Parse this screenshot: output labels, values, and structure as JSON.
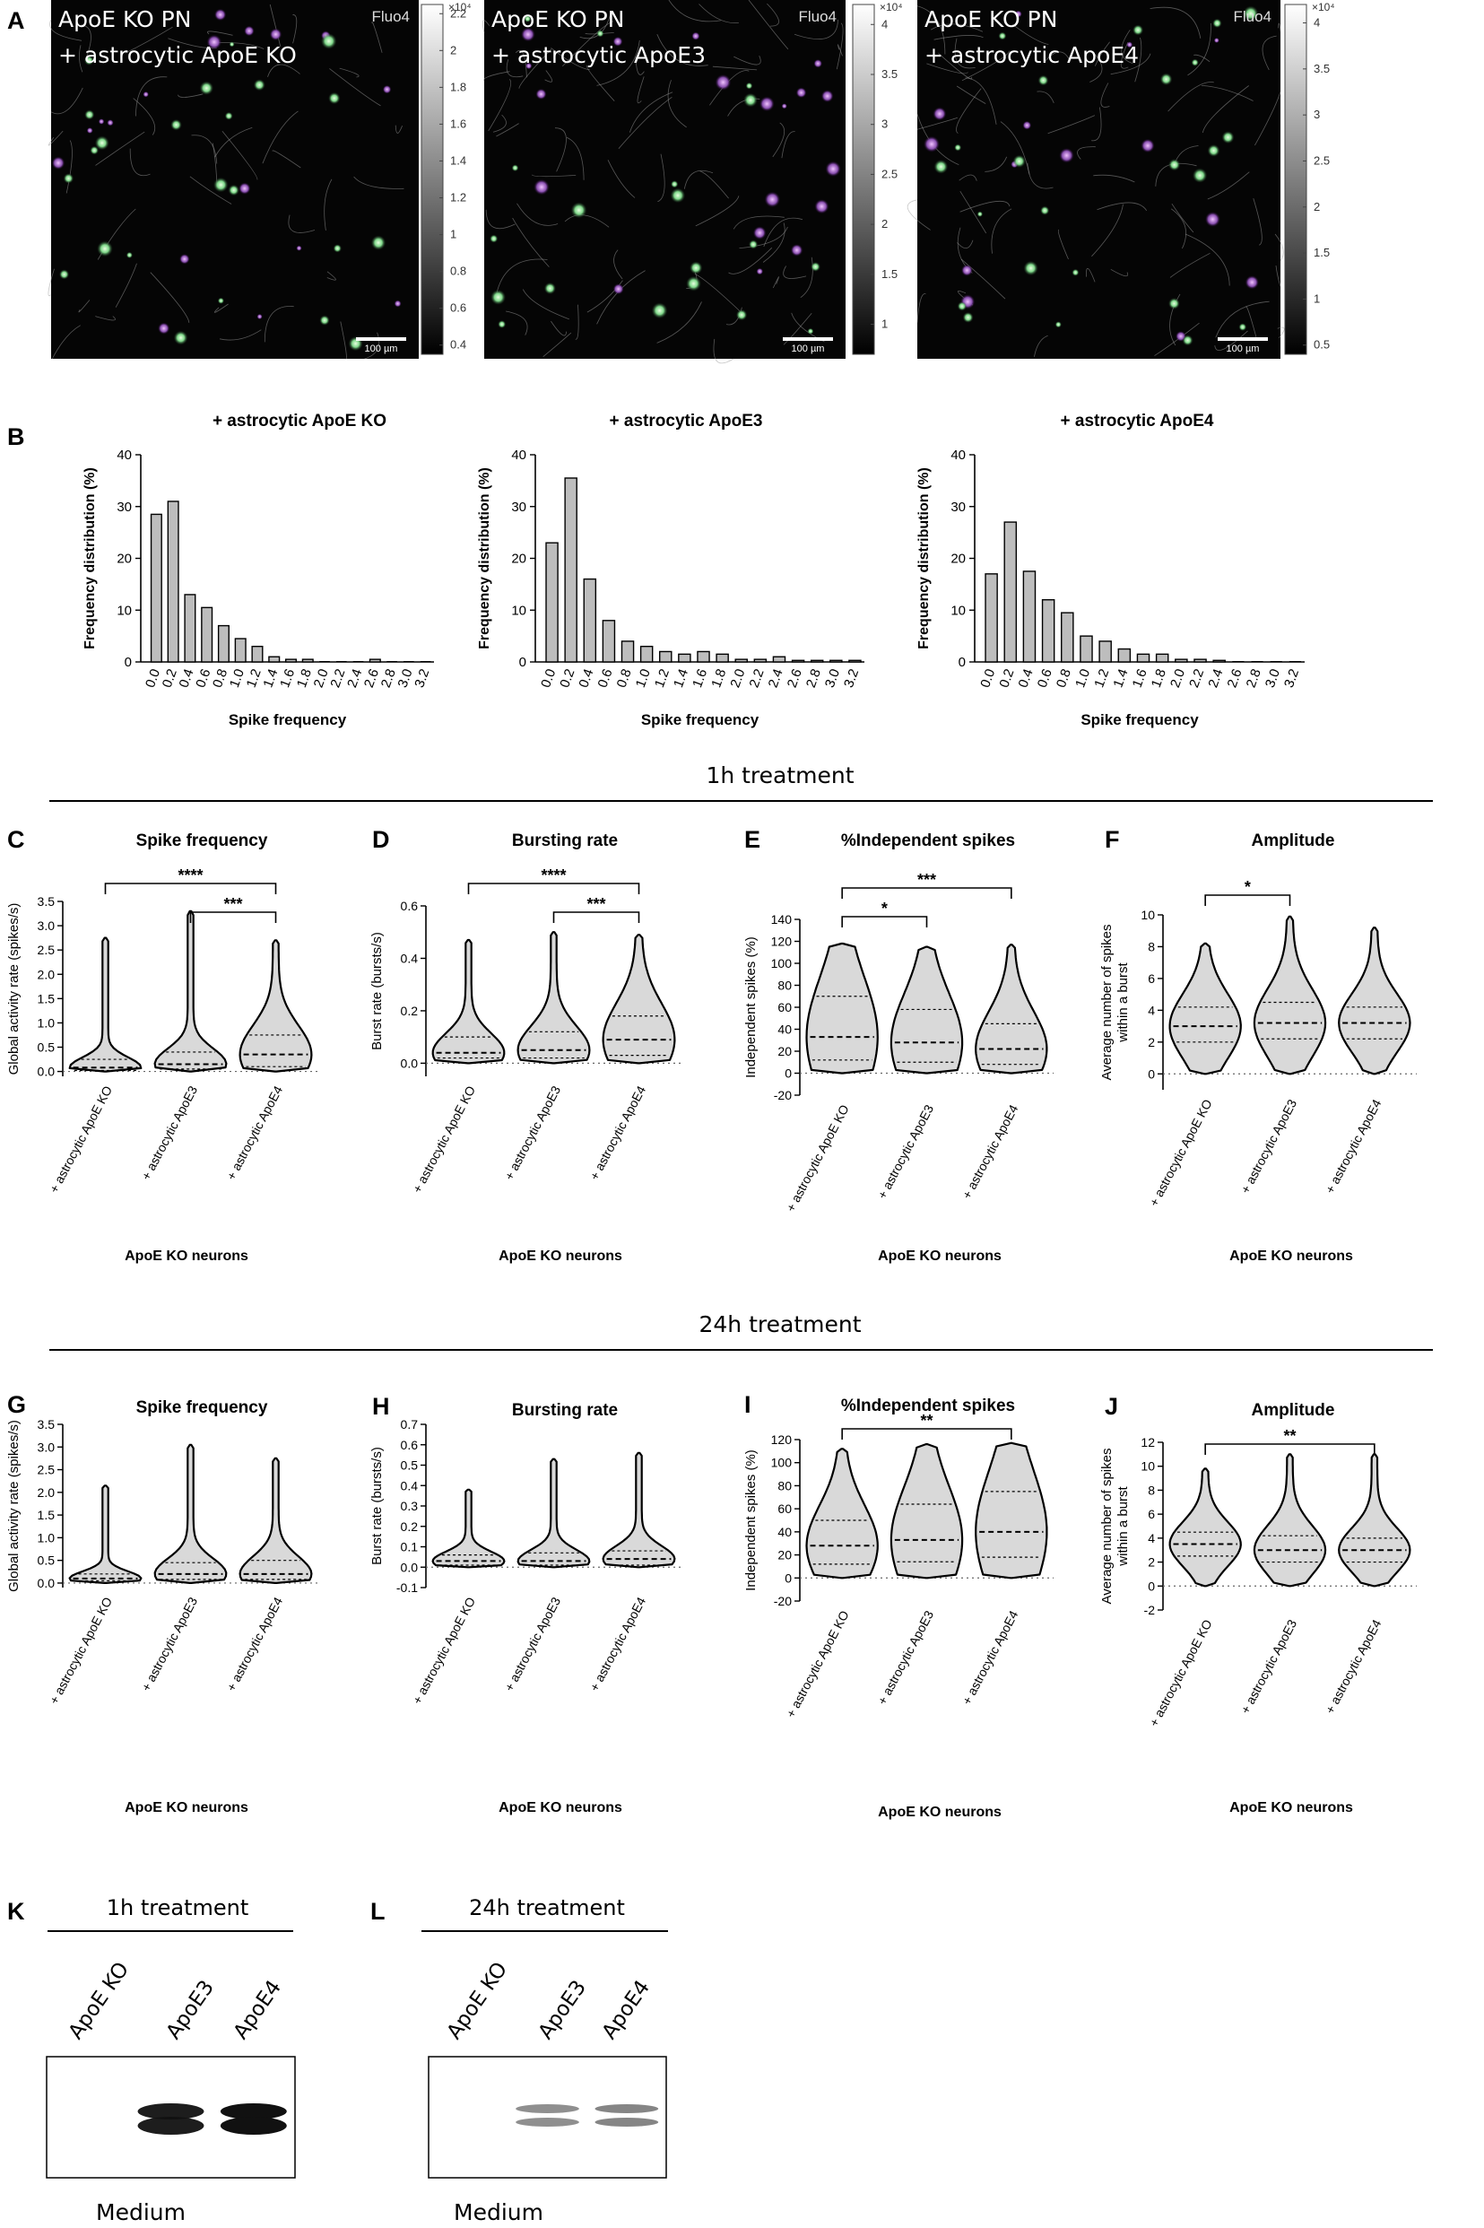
{
  "panel_letters": [
    "A",
    "B",
    "C",
    "D",
    "E",
    "F",
    "G",
    "H",
    "I",
    "J",
    "K",
    "L"
  ],
  "sections": {
    "h1": "1h treatment",
    "h24": "24h treatment"
  },
  "micrographs": [
    {
      "line1": "ApoE KO PN",
      "line2": "+ astrocytic ApoE KO",
      "channel": "Fluo4",
      "scale": "100 µm",
      "exp": "×10⁴",
      "cbar_ticks": [
        "2.2",
        "2",
        "1.8",
        "1.6",
        "1.4",
        "1.2",
        "1",
        "0.8",
        "0.6",
        "0.4"
      ],
      "cbar_range": [
        0.35,
        2.25
      ]
    },
    {
      "line1": "ApoE KO PN",
      "line2": "+ astrocytic ApoE3",
      "channel": "Fluo4",
      "scale": "100 µm",
      "exp": "×10⁴",
      "cbar_ticks": [
        "4",
        "3.5",
        "3",
        "2.5",
        "2",
        "1.5",
        "1"
      ],
      "cbar_range": [
        0.7,
        4.2
      ]
    },
    {
      "line1": "ApoE KO PN",
      "line2": "+ astrocytic ApoE4",
      "channel": "Fluo4",
      "scale": "100 µm",
      "exp": "×10⁴",
      "cbar_ticks": [
        "4",
        "3.5",
        "3",
        "2.5",
        "2",
        "1.5",
        "1",
        "0.5"
      ],
      "cbar_range": [
        0.4,
        4.2
      ]
    }
  ],
  "chart_data": [
    {
      "panel": "B",
      "type": "bar",
      "title": "+ astrocytic ApoE KO",
      "xlabel": "Spike frequency",
      "ylabel": "Frequency distribution (%)",
      "ylim": [
        0,
        40
      ],
      "yticks": [
        0,
        10,
        20,
        30,
        40
      ],
      "categories": [
        "0.0",
        "0.2",
        "0.4",
        "0.6",
        "0.8",
        "1.0",
        "1.2",
        "1.4",
        "1.6",
        "1.8",
        "2.0",
        "2.2",
        "2.4",
        "2.6",
        "2.8",
        "3.0",
        "3.2"
      ],
      "values": [
        28.5,
        31,
        13,
        10.5,
        7,
        4.5,
        3,
        1,
        0.5,
        0.5,
        0,
        0,
        0,
        0.5,
        0,
        0,
        0
      ]
    },
    {
      "panel": "B",
      "type": "bar",
      "title": "+ astrocytic  ApoE3",
      "xlabel": "Spike frequency",
      "ylabel": "Frequency distribution (%)",
      "ylim": [
        0,
        40
      ],
      "yticks": [
        0,
        10,
        20,
        30,
        40
      ],
      "categories": [
        "0.0",
        "0.2",
        "0.4",
        "0.6",
        "0.8",
        "1.0",
        "1.2",
        "1.4",
        "1.6",
        "1.8",
        "2.0",
        "2.2",
        "2.4",
        "2.6",
        "2.8",
        "3.0",
        "3.2"
      ],
      "values": [
        23,
        35.5,
        16,
        8,
        4,
        3,
        2,
        1.5,
        2,
        1.5,
        0.5,
        0.5,
        1,
        0.3,
        0.3,
        0.3,
        0.3
      ]
    },
    {
      "panel": "B",
      "type": "bar",
      "title": "+ astrocytic ApoE4",
      "xlabel": "Spike frequency",
      "ylabel": "Frequency distribution (%)",
      "ylim": [
        0,
        40
      ],
      "yticks": [
        0,
        10,
        20,
        30,
        40
      ],
      "categories": [
        "0.0",
        "0.2",
        "0.4",
        "0.6",
        "0.8",
        "1.0",
        "1.2",
        "1.4",
        "1.6",
        "1.8",
        "2.0",
        "2.2",
        "2.4",
        "2.6",
        "2.8",
        "3.0",
        "3.2"
      ],
      "values": [
        17,
        27,
        17.5,
        12,
        9.5,
        5,
        4,
        2.5,
        1.5,
        1.5,
        0.5,
        0.5,
        0.3,
        0,
        0,
        0,
        0
      ]
    },
    {
      "panel": "C",
      "type": "violin",
      "title": "Spike frequency",
      "ylabel": "Global activity rate (spikes/s)",
      "xlabel": "ApoE KO neurons",
      "ylim": [
        -0.1,
        3.5
      ],
      "yticks": [
        "0.0",
        "0.5",
        "1.0",
        "1.5",
        "2.0",
        "2.5",
        "3.0",
        "3.5"
      ],
      "ytick_values": [
        0,
        0.5,
        1,
        1.5,
        2,
        2.5,
        3,
        3.5
      ],
      "categories": [
        "+ astrocytic ApoE KO",
        "+ astrocytic ApoE3",
        "+ astrocytic ApoE4"
      ],
      "violins": [
        {
          "min": 0,
          "max": 2.75,
          "q1": 0.02,
          "median": 0.08,
          "q3": 0.25
        },
        {
          "min": 0,
          "max": 3.3,
          "q1": 0.05,
          "median": 0.15,
          "q3": 0.4
        },
        {
          "min": 0,
          "max": 2.7,
          "q1": 0.1,
          "median": 0.35,
          "q3": 0.75
        }
      ],
      "significance": [
        {
          "from": 0,
          "to": 2,
          "label": "****",
          "level": 0
        },
        {
          "from": 1,
          "to": 2,
          "label": "***",
          "level": 1
        }
      ]
    },
    {
      "panel": "D",
      "type": "violin",
      "title": "Bursting rate",
      "ylabel": "Burst rate (bursts/s)",
      "xlabel": "ApoE KO neurons",
      "ylim": [
        -0.05,
        0.6
      ],
      "yticks": [
        "0.0",
        "0.2",
        "0.4",
        "0.6"
      ],
      "ytick_values": [
        0,
        0.2,
        0.4,
        0.6
      ],
      "categories": [
        "+ astrocytic ApoE KO",
        "+ astrocytic ApoE3",
        "+ astrocytic ApoE4"
      ],
      "violins": [
        {
          "min": 0,
          "max": 0.47,
          "q1": 0.02,
          "median": 0.04,
          "q3": 0.1
        },
        {
          "min": 0,
          "max": 0.5,
          "q1": 0.02,
          "median": 0.05,
          "q3": 0.12
        },
        {
          "min": 0,
          "max": 0.49,
          "q1": 0.03,
          "median": 0.09,
          "q3": 0.18
        }
      ],
      "significance": [
        {
          "from": 0,
          "to": 2,
          "label": "****",
          "level": 0
        },
        {
          "from": 1,
          "to": 2,
          "label": "***",
          "level": 1
        }
      ]
    },
    {
      "panel": "E",
      "type": "violin",
      "title": "%Independent spikes",
      "ylabel": "Independent spikes (%)",
      "xlabel": "ApoE KO neurons",
      "ylim": [
        -20,
        140
      ],
      "yticks": [
        "-20",
        "0",
        "20",
        "40",
        "60",
        "80",
        "100",
        "120",
        "140"
      ],
      "ytick_values": [
        -20,
        0,
        20,
        40,
        60,
        80,
        100,
        120,
        140
      ],
      "categories": [
        "+ astrocytic ApoE KO",
        "+ astrocytic ApoE3",
        "+ astrocytic ApoE4"
      ],
      "violins": [
        {
          "min": 0,
          "max": 118,
          "q1": 12,
          "median": 33,
          "q3": 70
        },
        {
          "min": 0,
          "max": 115,
          "q1": 10,
          "median": 28,
          "q3": 58
        },
        {
          "min": 0,
          "max": 117,
          "q1": 8,
          "median": 22,
          "q3": 45
        }
      ],
      "significance": [
        {
          "from": 0,
          "to": 2,
          "label": "***",
          "level": 0
        },
        {
          "from": 0,
          "to": 1,
          "label": "*",
          "level": 1
        }
      ]
    },
    {
      "panel": "F",
      "type": "violin",
      "title": "Amplitude",
      "ylabel": "Average number of spikes\nwithin a burst",
      "xlabel": "ApoE KO neurons",
      "ylim": [
        -1,
        10
      ],
      "yticks": [
        "0",
        "2",
        "4",
        "6",
        "8",
        "10"
      ],
      "ytick_values": [
        0,
        2,
        4,
        6,
        8,
        10
      ],
      "categories": [
        "+ astrocytic ApoE KO",
        "+ astrocytic ApoE3",
        "+ astrocytic ApoE4"
      ],
      "violins": [
        {
          "min": 0,
          "max": 8.2,
          "q1": 2,
          "median": 3,
          "q3": 4.2
        },
        {
          "min": 0,
          "max": 9.9,
          "q1": 2.2,
          "median": 3.2,
          "q3": 4.5
        },
        {
          "min": 0,
          "max": 9.2,
          "q1": 2.2,
          "median": 3.2,
          "q3": 4.2
        }
      ],
      "significance": [
        {
          "from": 0,
          "to": 1,
          "label": "*",
          "level": 0
        }
      ]
    },
    {
      "panel": "G",
      "type": "violin",
      "title": "Spike frequency",
      "ylabel": "Global activity rate (spikes/s)",
      "xlabel": "ApoE KO neurons",
      "ylim": [
        -0.1,
        3.5
      ],
      "yticks": [
        "0.0",
        "0.5",
        "1.0",
        "1.5",
        "2.0",
        "2.5",
        "3.0",
        "3.5"
      ],
      "ytick_values": [
        0,
        0.5,
        1,
        1.5,
        2,
        2.5,
        3,
        3.5
      ],
      "categories": [
        "+ astrocytic ApoE KO",
        "+ astrocytic ApoE3",
        "+ astrocytic ApoE4"
      ],
      "violins": [
        {
          "min": 0,
          "max": 2.15,
          "q1": 0.05,
          "median": 0.1,
          "q3": 0.2
        },
        {
          "min": 0,
          "max": 3.05,
          "q1": 0.08,
          "median": 0.2,
          "q3": 0.45
        },
        {
          "min": 0,
          "max": 2.75,
          "q1": 0.08,
          "median": 0.2,
          "q3": 0.5
        }
      ],
      "significance": []
    },
    {
      "panel": "H",
      "type": "violin",
      "title": "Bursting rate",
      "ylabel": "Burst rate (bursts/s)",
      "xlabel": "ApoE KO neurons",
      "ylim": [
        -0.1,
        0.7
      ],
      "yticks": [
        "-0.1",
        "0.0",
        "0.1",
        "0.2",
        "0.3",
        "0.4",
        "0.5",
        "0.6",
        "0.7"
      ],
      "ytick_values": [
        -0.1,
        0,
        0.1,
        0.2,
        0.3,
        0.4,
        0.5,
        0.6,
        0.7
      ],
      "categories": [
        "+ astrocytic ApoE KO",
        "+ astrocytic ApoE3",
        "+ astrocytic ApoE4"
      ],
      "violins": [
        {
          "min": 0,
          "max": 0.38,
          "q1": 0.01,
          "median": 0.03,
          "q3": 0.06
        },
        {
          "min": 0,
          "max": 0.53,
          "q1": 0.01,
          "median": 0.03,
          "q3": 0.07
        },
        {
          "min": 0,
          "max": 0.56,
          "q1": 0.01,
          "median": 0.04,
          "q3": 0.08
        }
      ],
      "significance": []
    },
    {
      "panel": "I",
      "type": "violin",
      "title": "%Independent spikes",
      "ylabel": "Independent spikes (%)",
      "xlabel": "ApoE KO neurons",
      "ylim": [
        -20,
        120
      ],
      "yticks": [
        "-20",
        "0",
        "20",
        "40",
        "60",
        "80",
        "100",
        "120"
      ],
      "ytick_values": [
        -20,
        0,
        20,
        40,
        60,
        80,
        100,
        120
      ],
      "categories": [
        "+ astrocytic ApoE KO",
        "+ astrocytic ApoE3",
        "+ astrocytic ApoE4"
      ],
      "violins": [
        {
          "min": 0,
          "max": 112,
          "q1": 12,
          "median": 28,
          "q3": 50
        },
        {
          "min": 0,
          "max": 116,
          "q1": 14,
          "median": 33,
          "q3": 64
        },
        {
          "min": 0,
          "max": 117,
          "q1": 18,
          "median": 40,
          "q3": 75
        }
      ],
      "significance": [
        {
          "from": 0,
          "to": 2,
          "label": "**",
          "level": 0
        }
      ]
    },
    {
      "panel": "J",
      "type": "violin",
      "title": "Amplitude",
      "ylabel": "Average number of spikes\nwithin a burst",
      "xlabel": "ApoE KO neurons",
      "ylim": [
        -2,
        12
      ],
      "yticks": [
        "-2",
        "0",
        "2",
        "4",
        "6",
        "8",
        "10",
        "12"
      ],
      "ytick_values": [
        -2,
        0,
        2,
        4,
        6,
        8,
        10,
        12
      ],
      "categories": [
        "+ astrocytic ApoE KO",
        "+ astrocytic ApoE3",
        "+ astrocytic ApoE4"
      ],
      "violins": [
        {
          "min": 0,
          "max": 9.8,
          "q1": 2.5,
          "median": 3.5,
          "q3": 4.5
        },
        {
          "min": 0,
          "max": 11,
          "q1": 2,
          "median": 3,
          "q3": 4.2
        },
        {
          "min": 0,
          "max": 11,
          "q1": 2,
          "median": 3,
          "q3": 4
        }
      ],
      "significance": [
        {
          "from": 0,
          "to": 2,
          "label": "**",
          "level": 0
        }
      ]
    }
  ],
  "western_blots": [
    {
      "panel": "K",
      "title": "1h treatment",
      "lanes": [
        "ApoE KO",
        "ApoE3",
        "ApoE4"
      ],
      "caption": "Medium",
      "bands": [
        {
          "lane": 1,
          "intensity": 0.95
        },
        {
          "lane": 2,
          "intensity": 1.0
        }
      ]
    },
    {
      "panel": "L",
      "title": "24h treatment",
      "lanes": [
        "ApoE KO",
        "ApoE3",
        "ApoE4"
      ],
      "caption": "Medium",
      "bands": [
        {
          "lane": 1,
          "intensity": 0.55
        },
        {
          "lane": 2,
          "intensity": 0.6
        }
      ]
    }
  ]
}
